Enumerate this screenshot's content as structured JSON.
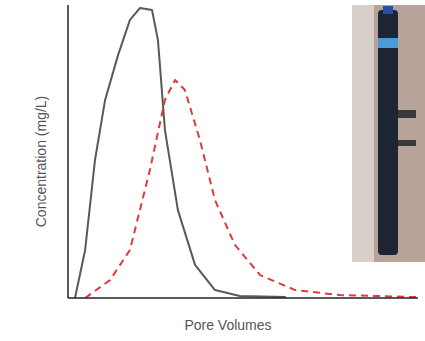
{
  "chart_data": {
    "type": "line",
    "x_label": "Pore Volumes",
    "y_label": "Concentration (mg/L)",
    "xlim": [
      0,
      10
    ],
    "ylim": [
      0,
      100
    ],
    "tick_labels": false,
    "series": [
      {
        "color": "#595959",
        "line_style": "solid",
        "x": [
          0.2,
          0.49,
          0.77,
          1.06,
          1.43,
          1.77,
          2.06,
          2.4,
          2.57,
          2.77,
          3.14,
          3.63,
          4.2,
          4.91,
          6.2
        ],
        "values": [
          0,
          16.4,
          47,
          67.6,
          82.9,
          94.9,
          99,
          98.3,
          88,
          57.3,
          30,
          11.3,
          2.7,
          0.7,
          0.3
        ]
      },
      {
        "color": "#e0393e",
        "line_style": "dashed",
        "x": [
          0.49,
          1.2,
          1.77,
          2.34,
          2.77,
          3.06,
          3.34,
          3.77,
          4.2,
          4.77,
          5.49,
          6.49,
          7.77,
          10
        ],
        "values": [
          0,
          6.1,
          16.4,
          43.7,
          67.6,
          74.4,
          71,
          53.9,
          33.4,
          18.1,
          7.8,
          2.7,
          1,
          0.3
        ]
      }
    ]
  }
}
